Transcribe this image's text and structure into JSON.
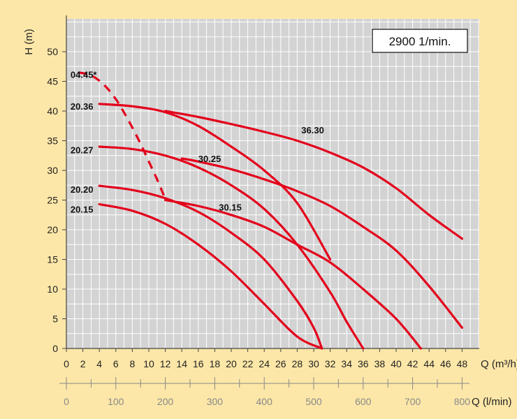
{
  "colors": {
    "background": "#fde7a8",
    "plot_area": "#d3d3d3",
    "grid": "#ffffff",
    "curve": "#e3001b",
    "axis": "#444444",
    "secondary_axis": "#888888"
  },
  "chart_data": {
    "type": "line",
    "title": "",
    "speed_box": "2900 1/min.",
    "ylabel": "H (m)",
    "xlabel": "Q (m³/h)",
    "x2label": "Q (l/min)",
    "xlim": [
      0,
      50
    ],
    "ylim": [
      0,
      55
    ],
    "x_ticks": [
      0,
      2,
      4,
      6,
      8,
      10,
      12,
      14,
      16,
      18,
      20,
      22,
      24,
      26,
      28,
      30,
      32,
      34,
      36,
      38,
      40,
      42,
      44,
      46,
      48
    ],
    "y_ticks": [
      0,
      5,
      10,
      15,
      20,
      25,
      30,
      35,
      40,
      45,
      50
    ],
    "x2_ticks": [
      0,
      100,
      200,
      300,
      400,
      500,
      600,
      700,
      800
    ],
    "grid": true,
    "series": [
      {
        "name": "20.36",
        "label": "20.36",
        "dashed": false,
        "label_at": [
          0.5,
          40.8
        ],
        "x": [
          4,
          8,
          12,
          16,
          20,
          24,
          28,
          32
        ],
        "y": [
          41.2,
          40.8,
          39.8,
          37.5,
          34.0,
          30.0,
          24.5,
          15.0
        ]
      },
      {
        "name": "36.30",
        "label": "36.30",
        "dashed": false,
        "label_at": [
          28.5,
          36.8
        ],
        "x": [
          12,
          16,
          20,
          24,
          28,
          32,
          36,
          40,
          44,
          48
        ],
        "y": [
          40.0,
          39.0,
          37.8,
          36.5,
          35.0,
          33.0,
          30.5,
          27.0,
          22.5,
          18.5
        ]
      },
      {
        "name": "20.27",
        "label": "20.27",
        "dashed": false,
        "label_at": [
          0.5,
          33.5
        ],
        "x": [
          4,
          8,
          12,
          16,
          20,
          24,
          28,
          32,
          34,
          36
        ],
        "y": [
          34.0,
          33.6,
          32.5,
          30.5,
          27.5,
          23.5,
          17.5,
          9.5,
          4.5,
          0
        ]
      },
      {
        "name": "30.25",
        "label": "30.25",
        "dashed": false,
        "label_at": [
          16.0,
          32.0
        ],
        "x": [
          14,
          16,
          20,
          24,
          28,
          32,
          36,
          40,
          44,
          48
        ],
        "y": [
          32.0,
          31.5,
          30.2,
          28.5,
          26.5,
          24.0,
          20.5,
          16.5,
          10.5,
          3.5
        ]
      },
      {
        "name": "20.20",
        "label": "20.20",
        "dashed": false,
        "label_at": [
          0.5,
          26.8
        ],
        "x": [
          4,
          8,
          12,
          16,
          20,
          24,
          28,
          30,
          31
        ],
        "y": [
          27.4,
          26.7,
          25.3,
          23.0,
          19.5,
          15.0,
          8.0,
          3.5,
          0
        ]
      },
      {
        "name": "30.15",
        "label": "30.15",
        "dashed": false,
        "label_at": [
          18.5,
          23.8
        ],
        "x": [
          12,
          16,
          20,
          24,
          28,
          32,
          36,
          40,
          43
        ],
        "y": [
          25.0,
          24.0,
          22.5,
          20.5,
          17.5,
          14.5,
          10.0,
          5.0,
          0
        ]
      },
      {
        "name": "20.15",
        "label": "20.15",
        "dashed": false,
        "label_at": [
          0.5,
          23.5
        ],
        "x": [
          4,
          8,
          12,
          16,
          20,
          24,
          28,
          31
        ],
        "y": [
          24.3,
          23.2,
          21.0,
          17.5,
          13.0,
          7.5,
          2.0,
          0
        ]
      },
      {
        "name": "04.45*",
        "label": "04.45*",
        "dashed": true,
        "label_at": [
          0.5,
          46.2
        ],
        "x": [
          1.5,
          3,
          4.5,
          6,
          7.5,
          9,
          10,
          11,
          12
        ],
        "y": [
          46.5,
          46.0,
          44.5,
          42.0,
          38.5,
          34.5,
          31.5,
          28.5,
          25.2
        ]
      }
    ]
  }
}
